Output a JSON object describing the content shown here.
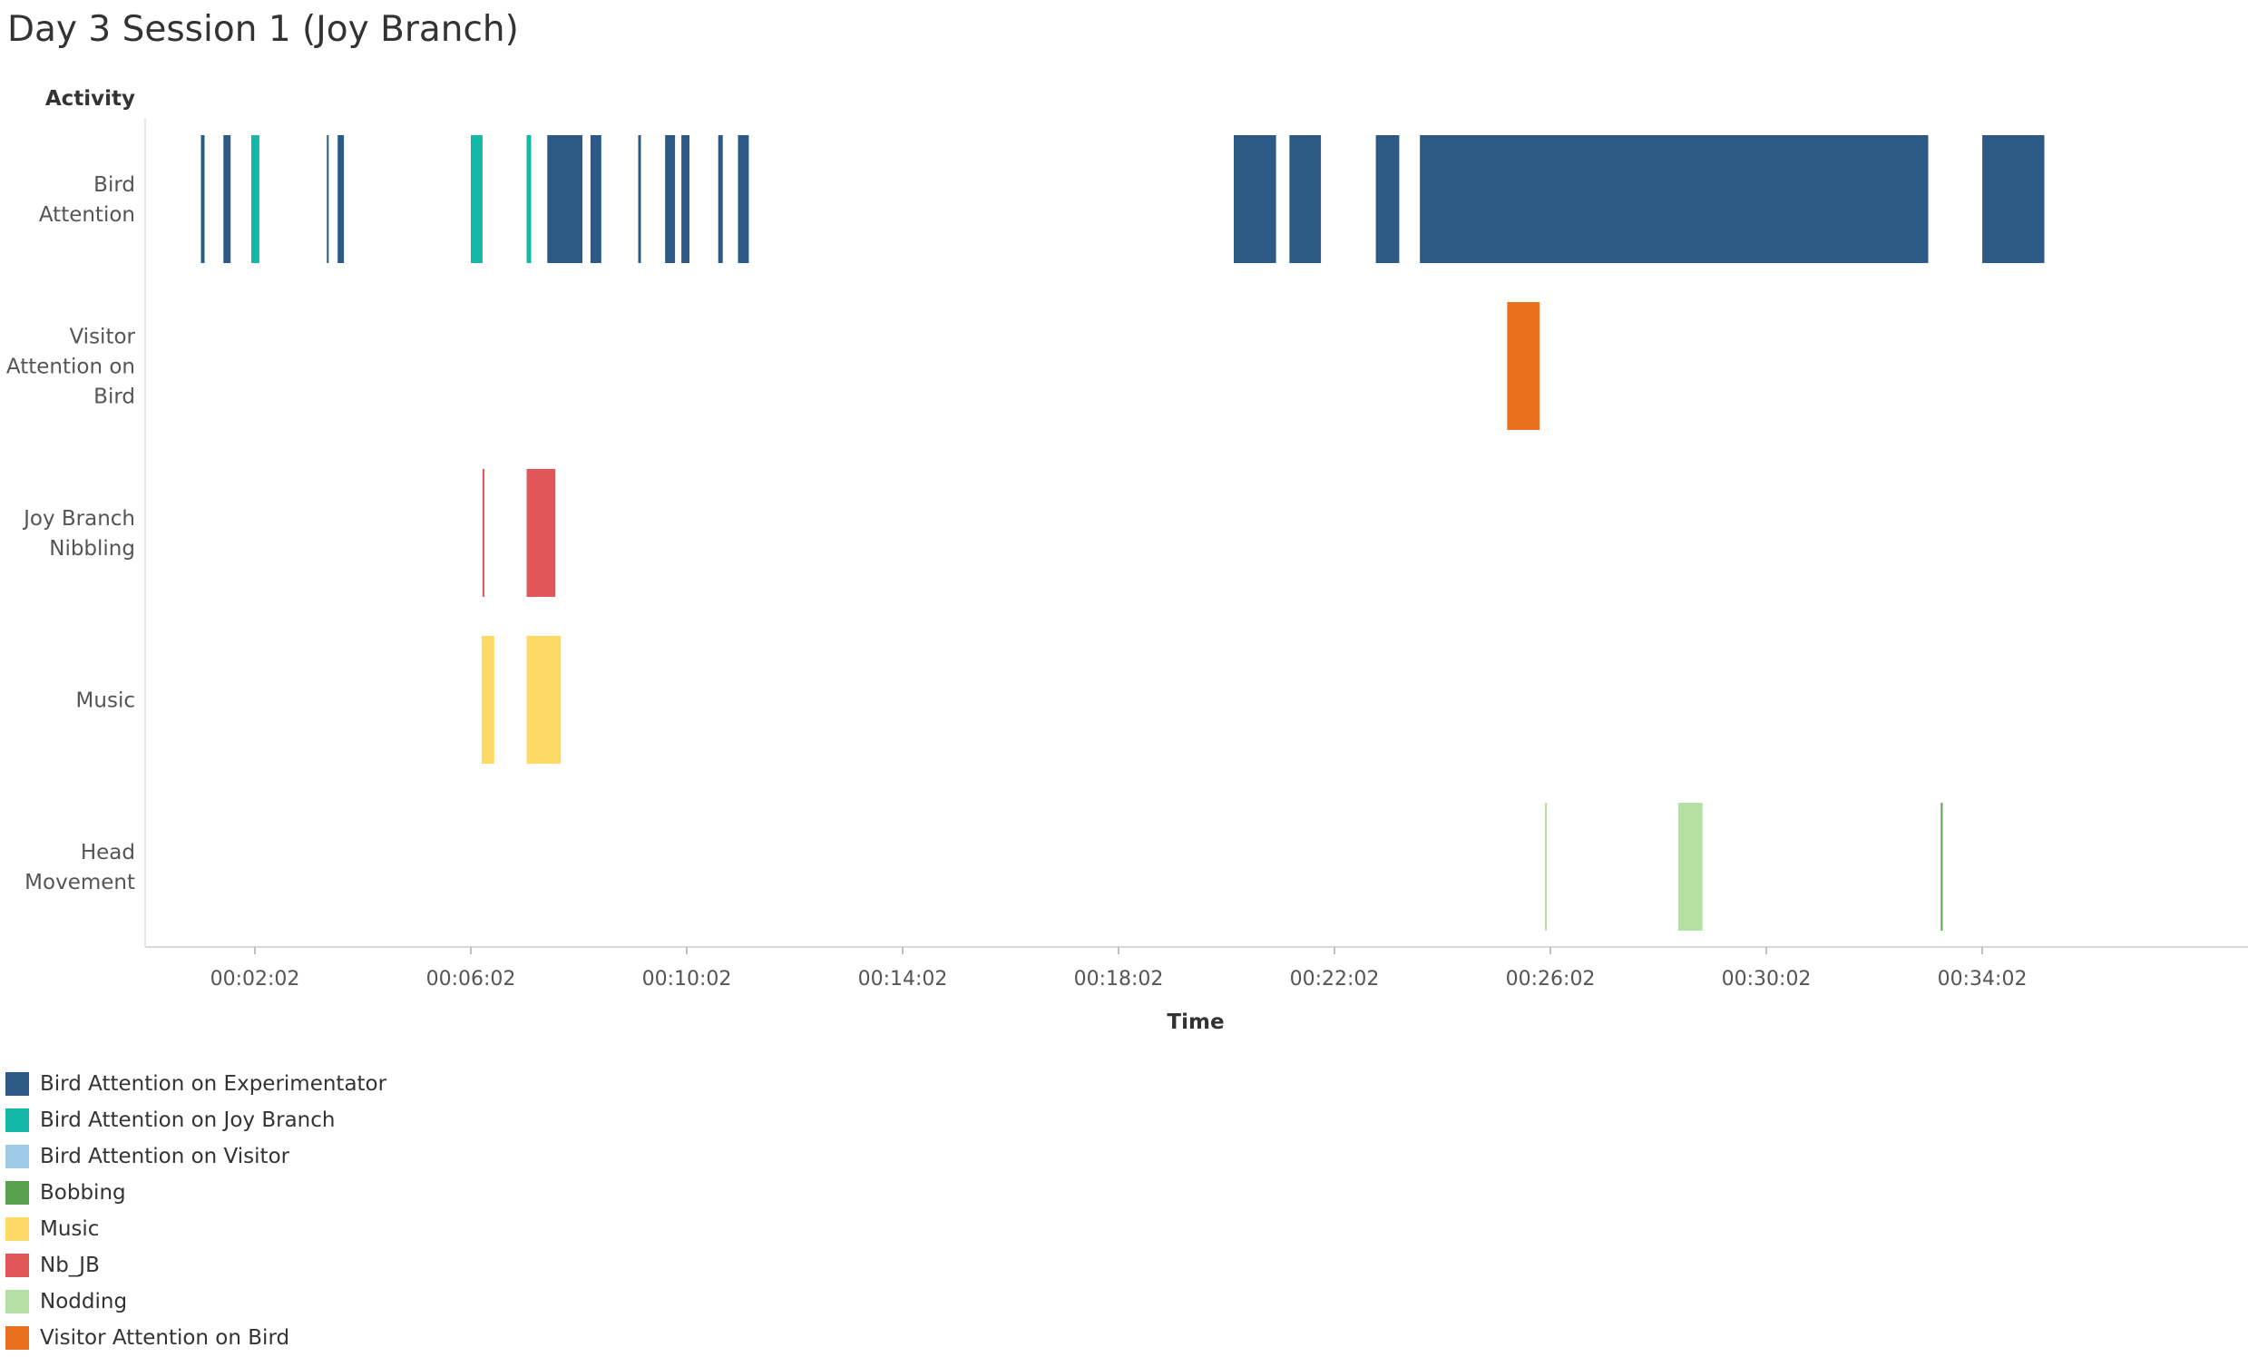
{
  "chart_data": {
    "type": "gantt",
    "title": "Day 3 Session 1 (Joy Branch)",
    "ylabel": "Activity",
    "xlabel": "Time",
    "x_ticks": [
      "00:02:02",
      "00:06:02",
      "00:10:02",
      "00:14:02",
      "00:18:02",
      "00:22:02",
      "00:26:02",
      "00:30:02",
      "00:34:02"
    ],
    "rows": [
      {
        "label_lines": [
          "Bird",
          "Attention"
        ]
      },
      {
        "label_lines": [
          "Visitor",
          "Attention on",
          "Bird"
        ]
      },
      {
        "label_lines": [
          "Joy Branch",
          "Nibbling"
        ]
      },
      {
        "label_lines": [
          "Music"
        ]
      },
      {
        "label_lines": [
          "Head",
          "Movement"
        ]
      }
    ],
    "legend": [
      {
        "name": "Bird Attention on Experimentator",
        "color": "#2C5985"
      },
      {
        "name": "Bird Attention on Joy Branch",
        "color": "#14B8A6"
      },
      {
        "name": "Bird Attention on Visitor",
        "color": "#A0CBE8"
      },
      {
        "name": "Bobbing",
        "color": "#59A14F"
      },
      {
        "name": "Music",
        "color": "#FFD966"
      },
      {
        "name": "Nb_JB",
        "color": "#E15759"
      },
      {
        "name": "Nodding",
        "color": "#B4E0A5"
      },
      {
        "name": "Visitor Attention on Bird",
        "color": "#E8701E"
      }
    ],
    "segments": [
      {
        "row": 0,
        "category": "Bird Attention on Experimentator",
        "start": 62,
        "end": 66
      },
      {
        "row": 0,
        "category": "Bird Attention on Experimentator",
        "start": 87,
        "end": 95
      },
      {
        "row": 0,
        "category": "Bird Attention on Joy Branch",
        "start": 118,
        "end": 127
      },
      {
        "row": 0,
        "category": "Bird Attention on Experimentator",
        "start": 202,
        "end": 203
      },
      {
        "row": 0,
        "category": "Bird Attention on Experimentator",
        "start": 214,
        "end": 221
      },
      {
        "row": 0,
        "category": "Bird Attention on Joy Branch",
        "start": 362,
        "end": 375
      },
      {
        "row": 0,
        "category": "Bird Attention on Joy Branch",
        "start": 424,
        "end": 429
      },
      {
        "row": 0,
        "category": "Bird Attention on Experimentator",
        "start": 447,
        "end": 486
      },
      {
        "row": 0,
        "category": "Bird Attention on Experimentator",
        "start": 495,
        "end": 507
      },
      {
        "row": 0,
        "category": "Bird Attention on Experimentator",
        "start": 548,
        "end": 551
      },
      {
        "row": 0,
        "category": "Bird Attention on Experimentator",
        "start": 578,
        "end": 589
      },
      {
        "row": 0,
        "category": "Bird Attention on Experimentator",
        "start": 596,
        "end": 605
      },
      {
        "row": 0,
        "category": "Bird Attention on Experimentator",
        "start": 637,
        "end": 642
      },
      {
        "row": 0,
        "category": "Bird Attention on Experimentator",
        "start": 659,
        "end": 671
      },
      {
        "row": 0,
        "category": "Bird Attention on Experimentator",
        "start": 1210,
        "end": 1257
      },
      {
        "row": 0,
        "category": "Bird Attention on Experimentator",
        "start": 1272,
        "end": 1307
      },
      {
        "row": 0,
        "category": "Bird Attention on Experimentator",
        "start": 1368,
        "end": 1394
      },
      {
        "row": 0,
        "category": "Bird Attention on Experimentator",
        "start": 1417,
        "end": 1982
      },
      {
        "row": 0,
        "category": "Bird Attention on Experimentator",
        "start": 2042,
        "end": 2111
      },
      {
        "row": 1,
        "category": "Visitor Attention on Bird",
        "start": 1514,
        "end": 1550
      },
      {
        "row": 2,
        "category": "Nb_JB",
        "start": 375,
        "end": 377
      },
      {
        "row": 2,
        "category": "Nb_JB",
        "start": 424,
        "end": 456
      },
      {
        "row": 3,
        "category": "Music",
        "start": 374,
        "end": 388
      },
      {
        "row": 3,
        "category": "Music",
        "start": 424,
        "end": 462
      },
      {
        "row": 4,
        "category": "Nodding",
        "start": 1556,
        "end": 1558
      },
      {
        "row": 4,
        "category": "Nodding",
        "start": 1704,
        "end": 1731
      },
      {
        "row": 4,
        "category": "Bobbing",
        "start": 1996,
        "end": 1998
      }
    ]
  }
}
